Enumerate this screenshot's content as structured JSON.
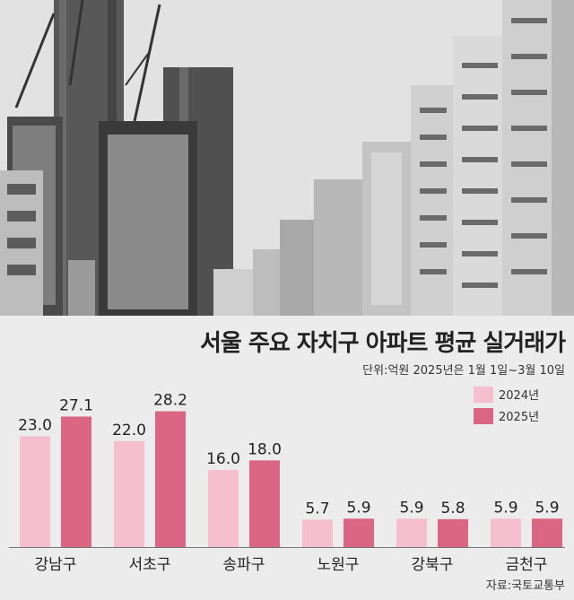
{
  "chart_data": {
    "type": "bar",
    "title": "서울 주요 자치구 아파트 평균 실거래가",
    "note": "단위:억원  2025년은 1월 1일~3월 10일",
    "categories": [
      "강남구",
      "서초구",
      "송파구",
      "노원구",
      "강북구",
      "금천구"
    ],
    "series": [
      {
        "name": "2024년",
        "values": [
          23.0,
          22.0,
          16.0,
          5.7,
          5.9,
          5.9
        ],
        "color": "#f5bfcf"
      },
      {
        "name": "2025년",
        "values": [
          27.1,
          28.2,
          18.0,
          5.9,
          5.8,
          5.9
        ],
        "color": "#db6684"
      }
    ],
    "value_labels": [
      [
        "23.0",
        "22.0",
        "16.0",
        "5.7",
        "5.9",
        "5.9"
      ],
      [
        "27.1",
        "28.2",
        "18.0",
        "5.9",
        "5.8",
        "5.9"
      ]
    ],
    "ylim": [
      0,
      30
    ],
    "grid": false,
    "legend_position": "top-right",
    "source": "자료:국토교통부"
  }
}
